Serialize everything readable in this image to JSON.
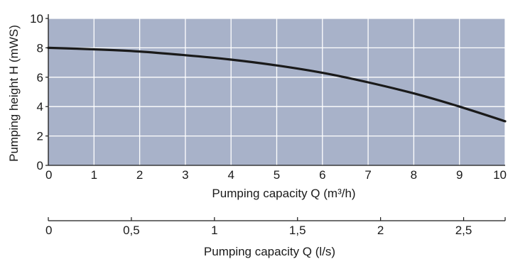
{
  "chart_data": {
    "type": "line",
    "title": "",
    "xlabel": "Pumping capacity Q (m³/h)",
    "ylabel": "Pumping height H (mWS)",
    "xlim": [
      0,
      10
    ],
    "ylim": [
      0,
      10
    ],
    "grid": true,
    "x_ticks": [
      "0",
      "1",
      "2",
      "3",
      "4",
      "5",
      "6",
      "7",
      "8",
      "9",
      "10"
    ],
    "y_ticks": [
      "0",
      "2",
      "4",
      "6",
      "8",
      "10"
    ],
    "series": [
      {
        "x": [
          0,
          1,
          2,
          3,
          4,
          5,
          6,
          7,
          8,
          9,
          10
        ],
        "y": [
          8.0,
          7.9,
          7.75,
          7.5,
          7.2,
          6.8,
          6.3,
          5.65,
          4.9,
          4.0,
          3.0
        ]
      }
    ],
    "secondary_axis": {
      "label": "Pumping capacity Q (l/s)",
      "ticks": [
        {
          "value": 0,
          "label": "0"
        },
        {
          "value": 0.5,
          "label": "0,5"
        },
        {
          "value": 1,
          "label": "1"
        },
        {
          "value": 1.5,
          "label": "1,5"
        },
        {
          "value": 2,
          "label": "2"
        },
        {
          "value": 2.5,
          "label": "2,5"
        }
      ]
    },
    "colors": {
      "plot_background": "#a8b2c9",
      "grid": "#ffffff",
      "line": "#1a1a1a"
    }
  }
}
